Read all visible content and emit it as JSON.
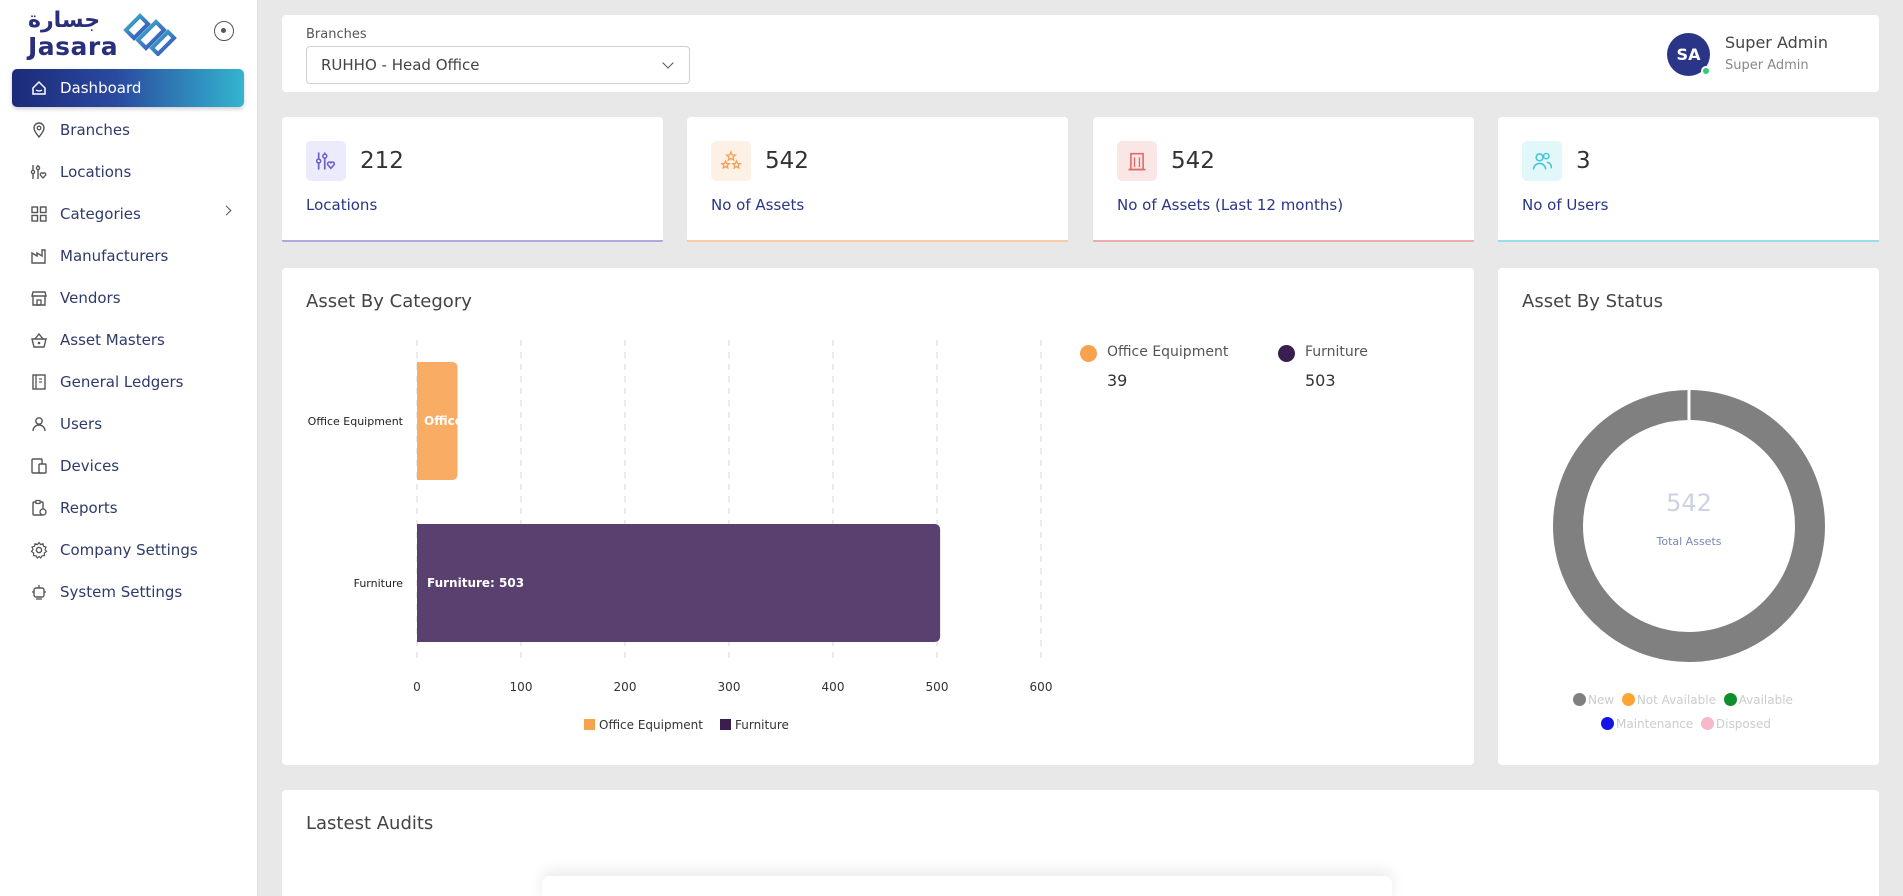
{
  "logo": {
    "arabic": "جسارة",
    "english": "Jasara"
  },
  "sidebar": {
    "items": [
      {
        "label": "Dashboard",
        "icon": "home-icon",
        "active": true
      },
      {
        "label": "Branches",
        "icon": "map-pin-icon"
      },
      {
        "label": "Locations",
        "icon": "sliders-heart-icon"
      },
      {
        "label": "Categories",
        "icon": "grid-icon",
        "has_children": true
      },
      {
        "label": "Manufacturers",
        "icon": "factory-icon"
      },
      {
        "label": "Vendors",
        "icon": "store-icon"
      },
      {
        "label": "Asset Masters",
        "icon": "basket-icon"
      },
      {
        "label": "General Ledgers",
        "icon": "ledger-icon"
      },
      {
        "label": "Users",
        "icon": "user-icon"
      },
      {
        "label": "Devices",
        "icon": "devices-icon"
      },
      {
        "label": "Reports",
        "icon": "report-icon"
      },
      {
        "label": "Company Settings",
        "icon": "gear-icon"
      },
      {
        "label": "System Settings",
        "icon": "robot-icon"
      }
    ]
  },
  "header": {
    "branch_label": "Branches",
    "branch_value": "RUHHO - Head Office",
    "avatar_initials": "SA",
    "user_name": "Super Admin",
    "user_role": "Super Admin"
  },
  "stats": [
    {
      "value": "212",
      "label": "Locations",
      "icon": "sliders-heart-icon",
      "color": "#6a62c9",
      "bg": "#ecebfb"
    },
    {
      "value": "542",
      "label": "No of Assets",
      "icon": "stars-icon",
      "color": "#f3a25a",
      "bg": "#fdf1e6"
    },
    {
      "value": "542",
      "label": "No of Assets (Last 12 months)",
      "icon": "building-icon",
      "color": "#e06a6a",
      "bg": "#fbe6e6"
    },
    {
      "value": "3",
      "label": "No of Users",
      "icon": "users-icon",
      "color": "#45c4d6",
      "bg": "#e2f7fa"
    }
  ],
  "category_chart": {
    "title": "Asset By Category",
    "legend_top": [
      {
        "name": "Office Equipment",
        "value": "39",
        "color": "#f7a24f"
      },
      {
        "name": "Furniture",
        "value": "503",
        "color": "#3a1e4f"
      }
    ]
  },
  "chart_data": {
    "type": "bar",
    "orientation": "horizontal",
    "categories": [
      "Office Equipment",
      "Furniture"
    ],
    "values": [
      39,
      503
    ],
    "data_labels": [
      "Office",
      "Furniture: 503"
    ],
    "colors": [
      "#f8ac64",
      "#5a406e"
    ],
    "ticks": [
      "0",
      "100",
      "200",
      "300",
      "400",
      "500",
      "600"
    ],
    "xlim": [
      0,
      600
    ],
    "legend": [
      "Office Equipment",
      "Furniture"
    ],
    "legend_placement": "bottom",
    "grid": true
  },
  "status_chart": {
    "title": "Asset By Status",
    "total": "542",
    "total_label": "Total Assets",
    "legend": [
      {
        "name": "New",
        "color": "#808080"
      },
      {
        "name": "Not Available",
        "color": "#ffa533"
      },
      {
        "name": "Available",
        "color": "#0f8f2a"
      },
      {
        "name": "Maintenance",
        "color": "#1414e6"
      },
      {
        "name": "Disposed",
        "color": "#f7b8c8"
      }
    ]
  },
  "audits": {
    "title": "Lastest Audits"
  }
}
